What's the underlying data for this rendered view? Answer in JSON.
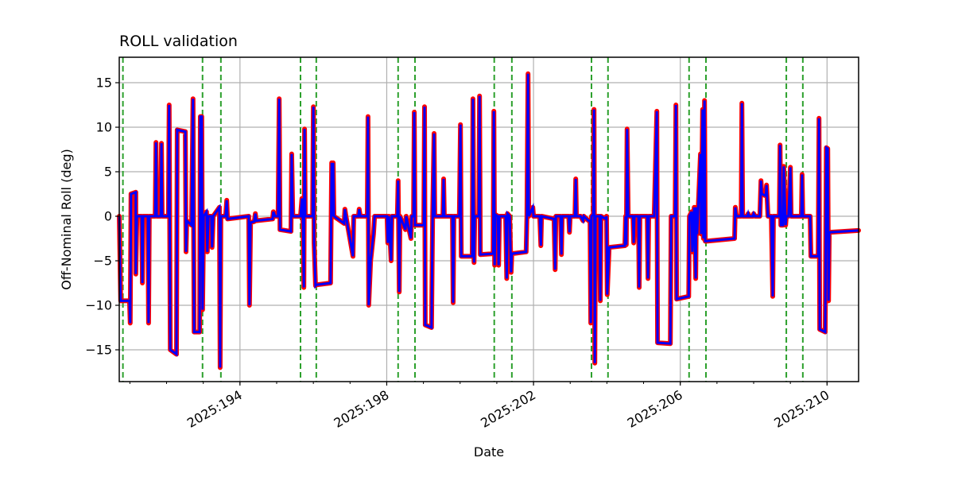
{
  "chart_data": {
    "type": "line",
    "title": "ROLL validation",
    "xlabel": "Date",
    "ylabel": "Off-Nominal Roll (deg)",
    "xlim": [
      190.71,
      210.86
    ],
    "ylim": [
      -18.57,
      17.86
    ],
    "grid": true,
    "x_ticks": [
      194,
      198,
      202,
      206,
      210
    ],
    "x_tick_labels": [
      "2025:194",
      "2025:198",
      "2025:202",
      "2025:206",
      "2025:210"
    ],
    "x_minor_ticks_every_days": 1,
    "y_ticks": [
      15,
      10,
      5,
      0,
      -5,
      -10,
      -15
    ],
    "y_tick_labels": [
      "15",
      "10",
      "5",
      "0",
      "−5",
      "−10",
      "−15"
    ],
    "series_colors": {
      "background_line": "#ff0000",
      "foreground_line": "#0000ff",
      "markers": "#2ca02c"
    },
    "vertical_markers": [
      190.81,
      192.98,
      193.48,
      195.65,
      196.08,
      198.31,
      198.77,
      200.93,
      201.41,
      203.58,
      204.03,
      206.24,
      206.7,
      208.89,
      209.34
    ],
    "x": [
      190.71,
      190.75,
      190.99,
      191.01,
      191.03,
      191.16,
      191.16,
      191.19,
      191.32,
      191.34,
      191.36,
      191.49,
      191.51,
      191.53,
      191.69,
      191.71,
      191.73,
      191.84,
      191.86,
      191.88,
      192.05,
      192.07,
      192.1,
      192.27,
      192.29,
      192.51,
      192.53,
      192.55,
      192.68,
      192.72,
      192.75,
      192.9,
      192.92,
      192.96,
      192.98,
      193.01,
      193.09,
      193.11,
      193.14,
      193.22,
      193.24,
      193.27,
      193.44,
      193.46,
      193.48,
      193.61,
      193.64,
      193.66,
      194.24,
      194.26,
      194.29,
      194.39,
      194.42,
      194.44,
      194.89,
      194.91,
      194.96,
      195.04,
      195.07,
      195.09,
      195.39,
      195.41,
      195.44,
      195.65,
      195.69,
      195.72,
      195.74,
      195.76,
      195.78,
      195.98,
      196.0,
      196.02,
      196.06,
      196.08,
      196.47,
      196.5,
      196.52,
      196.54,
      196.56,
      196.84,
      196.86,
      196.89,
      197.08,
      197.1,
      197.23,
      197.25,
      197.28,
      197.47,
      197.49,
      197.51,
      197.56,
      197.64,
      197.67,
      197.99,
      198.01,
      198.03,
      198.06,
      198.12,
      198.14,
      198.29,
      198.31,
      198.34,
      198.36,
      198.51,
      198.53,
      198.66,
      198.68,
      198.73,
      198.75,
      198.77,
      199.01,
      199.03,
      199.05,
      199.22,
      199.25,
      199.29,
      199.31,
      199.53,
      199.55,
      199.57,
      199.79,
      199.81,
      199.83,
      199.98,
      200.01,
      200.03,
      200.33,
      200.35,
      200.38,
      200.4,
      200.51,
      200.53,
      200.55,
      200.9,
      200.92,
      200.94,
      200.96,
      201.03,
      201.05,
      201.07,
      201.24,
      201.27,
      201.29,
      201.35,
      201.39,
      201.41,
      201.8,
      201.82,
      201.85,
      201.87,
      201.98,
      202.0,
      202.17,
      202.2,
      202.22,
      202.46,
      202.56,
      202.59,
      202.61,
      202.74,
      202.76,
      202.78,
      202.96,
      202.98,
      203.0,
      203.13,
      203.15,
      203.17,
      203.28,
      203.35,
      203.37,
      203.5,
      203.54,
      203.56,
      203.58,
      203.63,
      203.65,
      203.67,
      203.69,
      203.8,
      203.82,
      203.84,
      203.97,
      203.99,
      204.01,
      204.06,
      204.49,
      204.51,
      204.53,
      204.55,
      204.58,
      204.71,
      204.73,
      204.75,
      204.86,
      204.88,
      204.9,
      205.1,
      205.12,
      205.14,
      205.29,
      205.36,
      205.38,
      205.73,
      205.75,
      205.86,
      205.88,
      205.9,
      206.23,
      206.25,
      206.31,
      206.33,
      206.38,
      206.42,
      206.44,
      206.46,
      206.55,
      206.57,
      206.61,
      206.63,
      206.66,
      206.68,
      206.7,
      207.48,
      207.5,
      207.53,
      207.66,
      207.68,
      207.7,
      207.83,
      207.85,
      207.87,
      207.98,
      208.0,
      208.04,
      208.17,
      208.2,
      208.22,
      208.33,
      208.35,
      208.39,
      208.48,
      208.52,
      208.54,
      208.7,
      208.72,
      208.74,
      208.8,
      208.82,
      208.87,
      208.89,
      208.95,
      209.0,
      209.02,
      209.3,
      209.32,
      209.34,
      209.54,
      209.56,
      209.76,
      209.78,
      209.8,
      209.95,
      209.98,
      210.02,
      210.04,
      210.06,
      210.86
    ],
    "y": [
      0,
      -9.5,
      -9.5,
      -12,
      2.5,
      2.7,
      -6.5,
      0,
      0,
      -7.5,
      0,
      0,
      -12,
      0,
      0,
      8.3,
      0,
      0,
      8.2,
      0,
      0,
      12.5,
      -15,
      -15.5,
      9.7,
      9.5,
      -4,
      -0.5,
      -1,
      13.2,
      -13,
      -13,
      11.2,
      11.2,
      -10.5,
      0,
      0.5,
      -4,
      0,
      0,
      -3.5,
      0,
      1,
      -17,
      0,
      0,
      1.8,
      -0.3,
      0,
      -10,
      -0.7,
      -0.6,
      0.3,
      -0.5,
      -0.3,
      0.5,
      0,
      0,
      13.2,
      -1.5,
      -1.7,
      7,
      0,
      0,
      2,
      -1,
      -8,
      9.8,
      0,
      0,
      12.3,
      -3,
      -7.8,
      -7.7,
      -7.5,
      6,
      0,
      6,
      0,
      -0.8,
      0.8,
      0,
      -4.5,
      0,
      0,
      0.8,
      0,
      0,
      11.2,
      -10,
      -5,
      -2,
      0,
      0,
      0,
      -3,
      0,
      -5,
      0,
      0,
      4,
      -8.5,
      0,
      -1.5,
      0,
      -2.5,
      0,
      0,
      11.7,
      -1,
      -1,
      12.3,
      -12.2,
      -12.5,
      0,
      9.3,
      0,
      0,
      4.2,
      0,
      0,
      -9.7,
      0,
      0,
      10.3,
      -4.5,
      -4.5,
      13.2,
      -5.2,
      0,
      0,
      13.5,
      -4.3,
      -4.2,
      11.8,
      -5.5,
      0.2,
      0,
      -5.5,
      0,
      0,
      -7,
      0.3,
      0,
      -6.3,
      -4.2,
      -4,
      0,
      16,
      0,
      1,
      0,
      0,
      -3.3,
      0,
      -0.2,
      -0.3,
      -6,
      0,
      0,
      -4.3,
      0,
      0,
      -1.8,
      0,
      0,
      4.2,
      0,
      0,
      -0.5,
      0,
      -0.5,
      -0.5,
      -12,
      0,
      0.2,
      12,
      -16.5,
      0,
      0,
      -9.5,
      0,
      -0.3,
      0,
      -8.8,
      -3.5,
      -3.3,
      0,
      -3.2,
      9.8,
      0,
      0,
      -3,
      0,
      0,
      -8,
      0,
      0,
      -7,
      0,
      0,
      11.8,
      -14.2,
      -14.3,
      0,
      0,
      12.5,
      -9.3,
      -9,
      0,
      0.5,
      -4,
      1,
      -7,
      1,
      -2,
      7,
      -2,
      12,
      -2.5,
      13,
      -2.8,
      -2.8,
      -2.5,
      1,
      0,
      0,
      12.7,
      0,
      0,
      0.3,
      0,
      0,
      0.3,
      0,
      0,
      4,
      2.5,
      2.3,
      3.5,
      0,
      0,
      -9,
      0,
      0,
      8,
      -1,
      -1,
      5.6,
      -1,
      0,
      0,
      5.5,
      0,
      0,
      4.7,
      0,
      0,
      -4.5,
      -4.5,
      11,
      -12.7,
      -13,
      7.7,
      7.6,
      -9.5,
      -1.8,
      -1.6
    ]
  }
}
